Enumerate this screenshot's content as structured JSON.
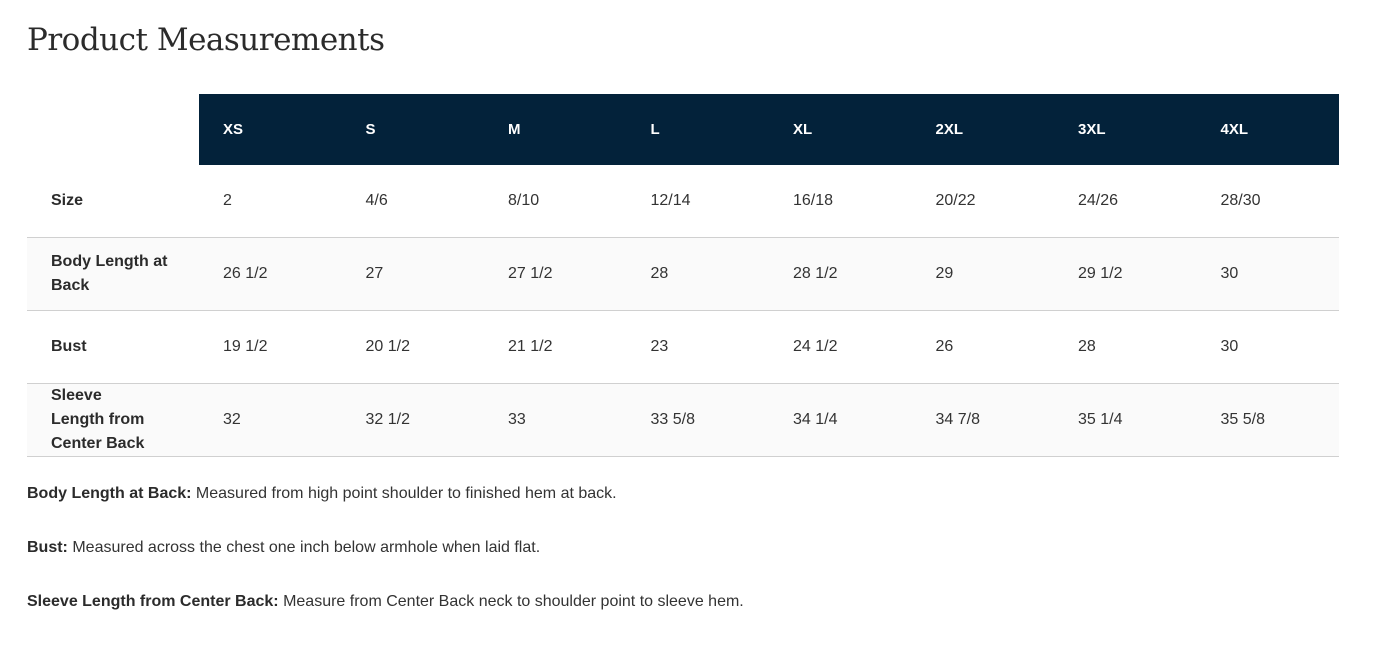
{
  "title": "Product Measurements",
  "table": {
    "headers": [
      "XS",
      "S",
      "M",
      "L",
      "XL",
      "2XL",
      "3XL",
      "4XL"
    ],
    "rows": [
      {
        "label": "Size",
        "values": [
          "2",
          "4/6",
          "8/10",
          "12/14",
          "16/18",
          "20/22",
          "24/26",
          "28/30"
        ]
      },
      {
        "label": "Body Length at Back",
        "values": [
          "26 1/2",
          "27",
          "27 1/2",
          "28",
          "28 1/2",
          "29",
          "29 1/2",
          "30"
        ]
      },
      {
        "label": "Bust",
        "values": [
          "19 1/2",
          "20 1/2",
          "21 1/2",
          "23",
          "24 1/2",
          "26",
          "28",
          "30"
        ]
      },
      {
        "label": "Sleeve Length from Center Back",
        "values": [
          "32",
          "32 1/2",
          "33",
          "33 5/8",
          "34 1/4",
          "34 7/8",
          "35 1/4",
          "35 5/8"
        ]
      }
    ]
  },
  "notes": [
    {
      "term": "Body Length at Back:",
      "text": " Measured from high point shoulder to finished hem at back."
    },
    {
      "term": "Bust:",
      "text": " Measured across the chest one inch below armhole when laid flat."
    },
    {
      "term": "Sleeve Length from Center Back:",
      "text": " Measure from Center Back neck to shoulder point to sleeve hem."
    }
  ],
  "colors": {
    "header_bg": "#03223a",
    "alt_row": "#fafafa"
  }
}
